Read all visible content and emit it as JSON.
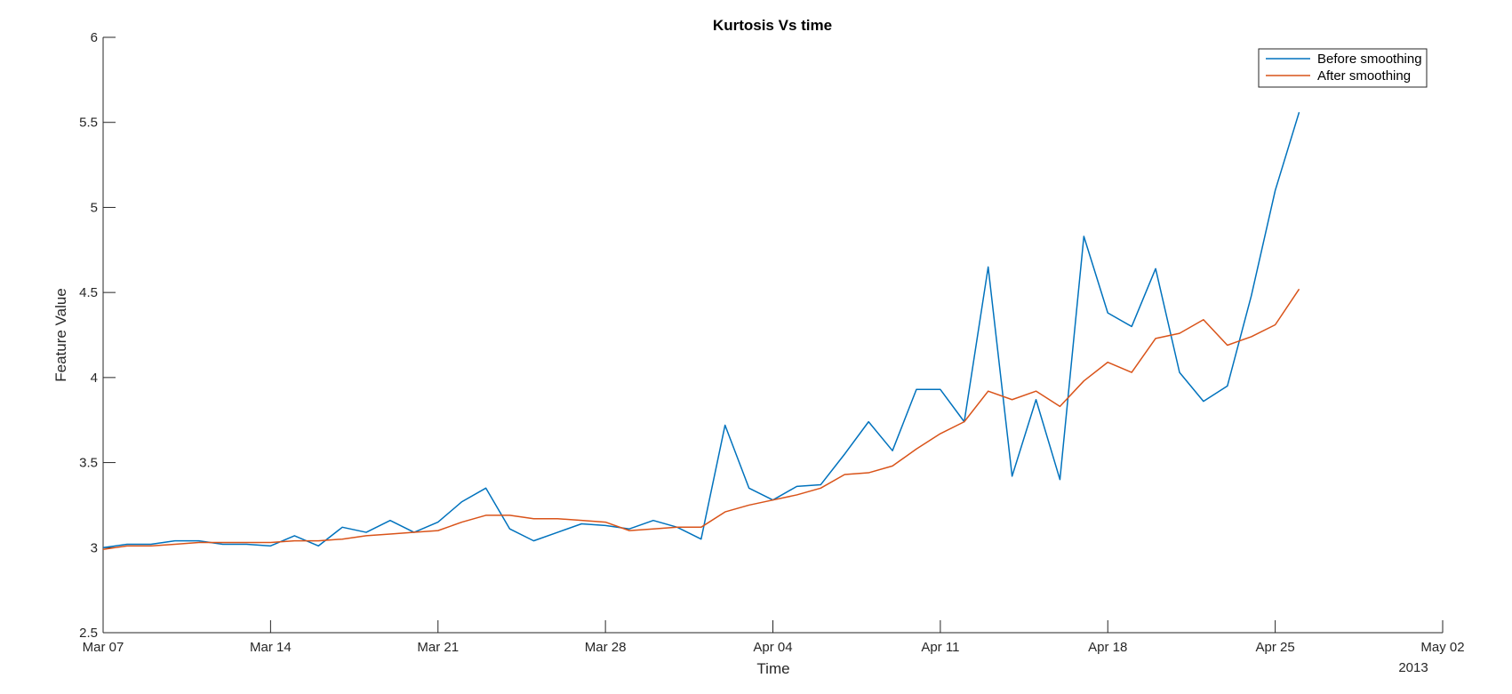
{
  "chart_data": {
    "type": "line",
    "title": "Kurtosis Vs time",
    "xlabel": "Time",
    "ylabel": "Feature Value",
    "x_secondary_label": "2013",
    "xlim": [
      "2013-03-07",
      "2013-05-02"
    ],
    "ylim": [
      2.5,
      6
    ],
    "y_ticks": [
      2.5,
      3,
      3.5,
      4,
      4.5,
      5,
      5.5,
      6
    ],
    "y_tick_labels": [
      "2.5",
      "3",
      "3.5",
      "4",
      "4.5",
      "5",
      "5.5",
      "6"
    ],
    "x_ticks": [
      "2013-03-07",
      "2013-03-14",
      "2013-03-21",
      "2013-03-28",
      "2013-04-04",
      "2013-04-11",
      "2013-04-18",
      "2013-04-25",
      "2013-05-02"
    ],
    "x_tick_labels": [
      "Mar 07",
      "Mar 14",
      "Mar 21",
      "Mar 28",
      "Apr 04",
      "Apr 11",
      "Apr 18",
      "Apr 25",
      "May 02"
    ],
    "grid": false,
    "legend_position": "top-right",
    "x": [
      "2013-03-07",
      "2013-03-08",
      "2013-03-09",
      "2013-03-10",
      "2013-03-11",
      "2013-03-12",
      "2013-03-13",
      "2013-03-14",
      "2013-03-15",
      "2013-03-16",
      "2013-03-17",
      "2013-03-18",
      "2013-03-19",
      "2013-03-20",
      "2013-03-21",
      "2013-03-22",
      "2013-03-23",
      "2013-03-24",
      "2013-03-25",
      "2013-03-26",
      "2013-03-27",
      "2013-03-28",
      "2013-03-29",
      "2013-03-30",
      "2013-03-31",
      "2013-04-01",
      "2013-04-02",
      "2013-04-03",
      "2013-04-04",
      "2013-04-05",
      "2013-04-06",
      "2013-04-07",
      "2013-04-08",
      "2013-04-09",
      "2013-04-10",
      "2013-04-11",
      "2013-04-12",
      "2013-04-13",
      "2013-04-14",
      "2013-04-15",
      "2013-04-16",
      "2013-04-17",
      "2013-04-18",
      "2013-04-19",
      "2013-04-20",
      "2013-04-21",
      "2013-04-22",
      "2013-04-23",
      "2013-04-24",
      "2013-04-25",
      "2013-04-26"
    ],
    "series": [
      {
        "name": "Before smoothing",
        "color": "#0072BD",
        "values": [
          3.0,
          3.02,
          3.02,
          3.04,
          3.04,
          3.02,
          3.02,
          3.01,
          3.07,
          3.01,
          3.12,
          3.09,
          3.16,
          3.09,
          3.15,
          3.27,
          3.35,
          3.11,
          3.04,
          3.09,
          3.14,
          3.13,
          3.11,
          3.16,
          3.12,
          3.05,
          3.72,
          3.35,
          3.28,
          3.36,
          3.37,
          3.55,
          3.74,
          3.57,
          3.93,
          3.93,
          3.74,
          4.65,
          3.42,
          3.87,
          3.4,
          4.83,
          4.38,
          4.3,
          4.64,
          4.03,
          3.86,
          3.95,
          4.48,
          5.1,
          5.56
        ]
      },
      {
        "name": "After smoothing",
        "color": "#D95319",
        "values": [
          2.99,
          3.01,
          3.01,
          3.02,
          3.03,
          3.03,
          3.03,
          3.03,
          3.04,
          3.04,
          3.05,
          3.07,
          3.08,
          3.09,
          3.1,
          3.15,
          3.19,
          3.19,
          3.17,
          3.17,
          3.16,
          3.15,
          3.1,
          3.11,
          3.12,
          3.12,
          3.21,
          3.25,
          3.28,
          3.31,
          3.35,
          3.43,
          3.44,
          3.48,
          3.58,
          3.67,
          3.74,
          3.92,
          3.87,
          3.92,
          3.83,
          3.98,
          4.09,
          4.03,
          4.23,
          4.26,
          4.34,
          4.19,
          4.24,
          4.31,
          4.52
        ]
      }
    ]
  }
}
